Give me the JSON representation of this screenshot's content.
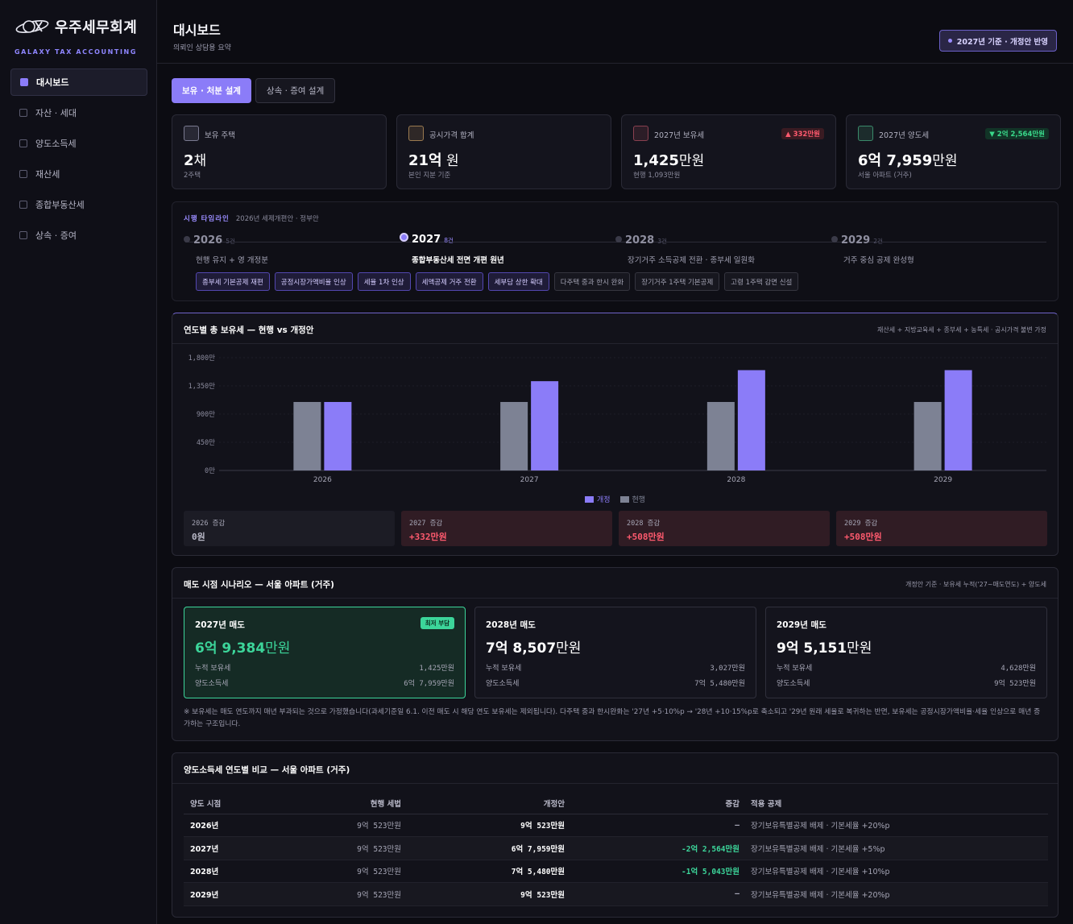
{
  "brand": {
    "name": "우주세무회계",
    "sub": "GALAXY TAX ACCOUNTING"
  },
  "sidebar": {
    "items": [
      {
        "label": "대시보드",
        "active": true
      },
      {
        "label": "자산 · 세대",
        "active": false
      },
      {
        "label": "양도소득세",
        "active": false
      },
      {
        "label": "재산세",
        "active": false
      },
      {
        "label": "종합부동산세",
        "active": false
      },
      {
        "label": "상속 · 증여",
        "active": false
      }
    ]
  },
  "header": {
    "title": "대시보드",
    "subtitle": "의뢰인 상담용 요약",
    "badge": "2027년 기준 · 개정안 반영"
  },
  "tabs": [
    {
      "label": "보유 · 처분 설계",
      "active": true
    },
    {
      "label": "상속 · 증여 설계",
      "active": false
    }
  ],
  "kpis": [
    {
      "label": "보유 주택",
      "value_num": "2",
      "value_unit": "채",
      "note": "2주택",
      "icon_color": "#7a7a90"
    },
    {
      "label": "공시가격 합계",
      "value_num": "21억",
      "value_unit": " 원",
      "note": "본인 지분 기준",
      "icon_color": "#9a7a50"
    },
    {
      "label": "2027년 보유세",
      "value_num": "1,425",
      "value_unit": "만원",
      "note": "현행 1,093만원",
      "chip": "▲ 332만원",
      "chip_type": "red",
      "icon_color": "#8a4050"
    },
    {
      "label": "2027년 양도세",
      "value_num": "6억  7,959",
      "value_unit": "만원",
      "note": "서울 아파트 (거주)",
      "chip": "▼ 2억 2,564만원",
      "chip_type": "green",
      "icon_color": "#3a8a6a"
    }
  ],
  "timeline": {
    "title": "시행 타임라인",
    "subtitle": "2026년 세제개편안 · 정부안",
    "years": [
      {
        "year": "2026",
        "count": "5건",
        "desc": "현행 유지 + 영 개정분",
        "active": false
      },
      {
        "year": "2027",
        "count": "8건",
        "desc": "종합부동산세 전면 개편 원년",
        "active": true
      },
      {
        "year": "2028",
        "count": "3건",
        "desc": "장기거주 소득공제 전환 · 종부세 일원화",
        "active": false
      },
      {
        "year": "2029",
        "count": "2건",
        "desc": "거주 중심 공제 완성형",
        "active": false
      }
    ],
    "tags": [
      {
        "label": "종부세 기본공제 재편",
        "type": "new"
      },
      {
        "label": "공정시장가액비율 인상",
        "type": "new"
      },
      {
        "label": "세율 1차 인상",
        "type": "new"
      },
      {
        "label": "세액공제 거주 전환",
        "type": "new"
      },
      {
        "label": "세부담 상한 확대",
        "type": "new"
      },
      {
        "label": "다주택 중과 한시 완화",
        "type": "old"
      },
      {
        "label": "장기거주 1주택 기본공제",
        "type": "old"
      },
      {
        "label": "고령 1주택 감면 신설",
        "type": "old"
      }
    ]
  },
  "chart_card": {
    "title": "연도별 총 보유세 — 현행 vs 개정안",
    "note": "재산세 + 지방교육세 + 종부세 + 농특세 · 공시가격 불변 가정"
  },
  "chart_data": {
    "type": "bar",
    "categories": [
      "2026",
      "2027",
      "2028",
      "2029"
    ],
    "series": [
      {
        "name": "현행",
        "values": [
          1093,
          1093,
          1093,
          1093
        ],
        "color": "#7d8294"
      },
      {
        "name": "개정",
        "values": [
          1093,
          1425,
          1601,
          1601
        ],
        "color": "#8b7cf8"
      }
    ],
    "yticks": [
      "0만",
      "450만",
      "900만",
      "1,350만",
      "1,800만"
    ],
    "ylim": [
      0,
      1800
    ],
    "legend": [
      {
        "label": "개정",
        "color": "#8b7cf8"
      },
      {
        "label": "현행",
        "color": "#7d8294"
      }
    ]
  },
  "deltas": [
    {
      "label": "2026 증감",
      "value": "0원",
      "type": "neutral"
    },
    {
      "label": "2027 증감",
      "value": "+332만원",
      "type": "up"
    },
    {
      "label": "2028 증감",
      "value": "+508만원",
      "type": "up"
    },
    {
      "label": "2029 증감",
      "value": "+508만원",
      "type": "up"
    }
  ],
  "scenario": {
    "title": "매도 시점 시나리오 — 서울 아파트 (거주)",
    "note": "개정안 기준 · 보유세 누적('27~매도연도) + 양도세",
    "items": [
      {
        "title": "2027년 매도",
        "badge": "최저 부담",
        "total_num": "6억  9,384",
        "total_unit": "만원",
        "hold_label": "누적 보유세",
        "hold_val": "1,425만원",
        "cgt_label": "양도소득세",
        "cgt_val": "6억  7,959만원",
        "best": true
      },
      {
        "title": "2028년 매도",
        "badge": "",
        "total_num": "7억  8,507",
        "total_unit": "만원",
        "hold_label": "누적 보유세",
        "hold_val": "3,027만원",
        "cgt_label": "양도소득세",
        "cgt_val": "7억  5,480만원",
        "best": false
      },
      {
        "title": "2029년 매도",
        "badge": "",
        "total_num": "9억  5,151",
        "total_unit": "만원",
        "hold_label": "누적 보유세",
        "hold_val": "4,628만원",
        "cgt_label": "양도소득세",
        "cgt_val": "9억  523만원",
        "best": false
      }
    ],
    "footnote": "※ 보유세는 매도 연도까지 매년 부과되는 것으로 가정했습니다(과세기준일 6.1. 이전 매도 시 해당 연도 보유세는 제외됩니다). 다주택 중과 한시완화는 '27년 +5·10%p → '28년 +10·15%p로 축소되고 '29년 원래 세율로 복귀하는 반면, 보유세는 공정시장가액비율·세율 인상으로 매년 증가하는 구조입니다."
  },
  "table": {
    "title": "양도소득세 연도별 비교 — 서울 아파트 (거주)",
    "headers": [
      "양도 시점",
      "현행 세법",
      "개정안",
      "증감",
      "적용 공제"
    ],
    "rows": [
      {
        "year": "2026년",
        "now": "9억  523만원",
        "new": "9억  523만원",
        "diff": "—",
        "diff_type": "none",
        "rule": "장기보유특별공제 배제 · 기본세율 +20%p"
      },
      {
        "year": "2027년",
        "now": "9억  523만원",
        "new": "6억  7,959만원",
        "diff": "-2억  2,564만원",
        "diff_type": "green",
        "rule": "장기보유특별공제 배제 · 기본세율 +5%p"
      },
      {
        "year": "2028년",
        "now": "9억  523만원",
        "new": "7억  5,480만원",
        "diff": "-1억  5,043만원",
        "diff_type": "green",
        "rule": "장기보유특별공제 배제 · 기본세율 +10%p"
      },
      {
        "year": "2029년",
        "now": "9억  523만원",
        "new": "9억  523만원",
        "diff": "—",
        "diff_type": "none",
        "rule": "장기보유특별공제 배제 · 기본세율 +20%p"
      }
    ]
  }
}
